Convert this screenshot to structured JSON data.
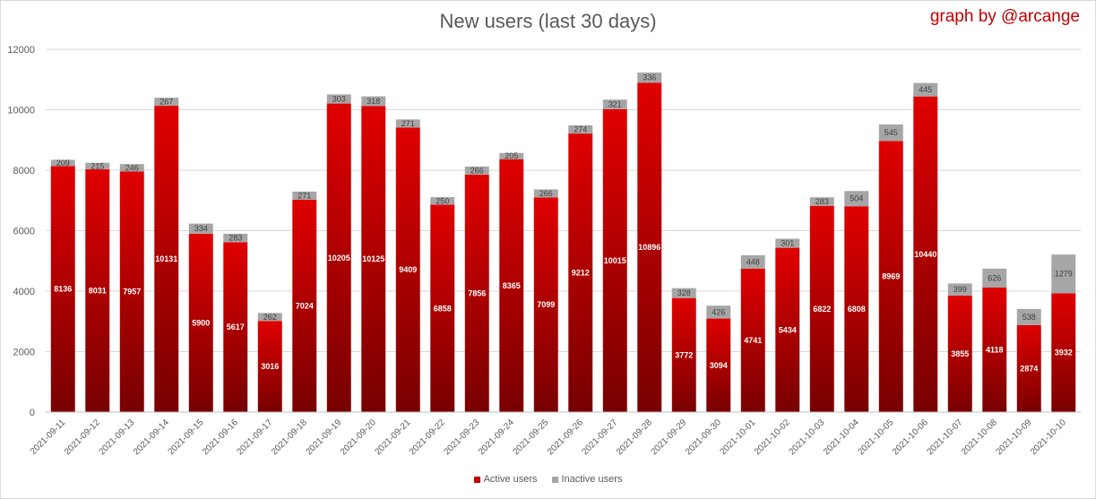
{
  "chart_data": {
    "type": "bar",
    "stacked": true,
    "title": "New users (last 30 days)",
    "credit": "graph by @arcange",
    "categories": [
      "2021-09-11",
      "2021-09-12",
      "2021-09-13",
      "2021-09-14",
      "2021-09-15",
      "2021-09-16",
      "2021-09-17",
      "2021-09-18",
      "2021-09-19",
      "2021-09-20",
      "2021-09-21",
      "2021-09-22",
      "2021-09-23",
      "2021-09-24",
      "2021-09-25",
      "2021-09-26",
      "2021-09-27",
      "2021-09-28",
      "2021-09-29",
      "2021-09-30",
      "2021-10-01",
      "2021-10-02",
      "2021-10-03",
      "2021-10-04",
      "2021-10-05",
      "2021-10-06",
      "2021-10-07",
      "2021-10-08",
      "2021-10-09",
      "2021-10-10"
    ],
    "series": [
      {
        "name": "Active users",
        "color": "#c00000",
        "values": [
          8136,
          8031,
          7957,
          10131,
          5900,
          5617,
          3016,
          7024,
          10205,
          10125,
          9409,
          6858,
          7856,
          8365,
          7099,
          9212,
          10015,
          10896,
          3772,
          3094,
          4741,
          5434,
          6822,
          6808,
          8969,
          10440,
          3855,
          4118,
          2874,
          3932
        ]
      },
      {
        "name": "Inactive users",
        "color": "#a6a6a6",
        "values": [
          209,
          215,
          246,
          267,
          334,
          283,
          262,
          271,
          303,
          318,
          271,
          250,
          266,
          205,
          266,
          274,
          321,
          336,
          328,
          426,
          448,
          301,
          283,
          504,
          545,
          445,
          399,
          626,
          538,
          1279
        ]
      }
    ],
    "yticks": [
      0,
      2000,
      4000,
      6000,
      8000,
      10000,
      12000
    ],
    "ylim": [
      0,
      12000
    ],
    "xlabel": "",
    "ylabel": "",
    "grid": true,
    "legend_position": "bottom"
  }
}
